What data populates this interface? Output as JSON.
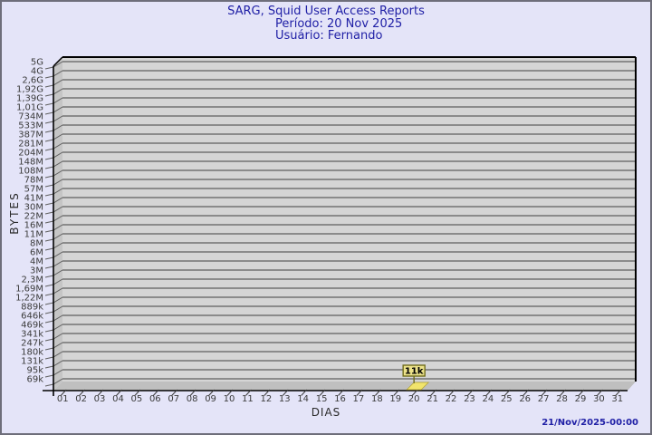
{
  "header": {
    "title": "SARG, Squid User Access Reports",
    "period": "Período: 20 Nov 2025",
    "user": "Usuário: Fernando"
  },
  "footer": {
    "timestamp": "21/Nov/2025-00:00"
  },
  "chart_data": {
    "type": "bar",
    "title": "SARG, Squid User Access Reports",
    "subtitle_period": "Período: 20 Nov 2025",
    "subtitle_user": "Usuário: Fernando",
    "xlabel": "DIAS",
    "ylabel": "BYTES",
    "y_scale": "log",
    "grid": true,
    "legend": null,
    "y_tick_labels_top_to_bottom": [
      "5G",
      "4G",
      "2,6G",
      "1,92G",
      "1,39G",
      "1,01G",
      "734M",
      "533M",
      "387M",
      "281M",
      "204M",
      "148M",
      "108M",
      "78M",
      "57M",
      "41M",
      "30M",
      "22M",
      "16M",
      "11M",
      "8M",
      "6M",
      "4M",
      "3M",
      "2,3M",
      "1,69M",
      "1,22M",
      "889k",
      "646k",
      "469k",
      "341k",
      "247k",
      "180k",
      "131k",
      "95k",
      "69k"
    ],
    "x_tick_labels": [
      "01",
      "02",
      "03",
      "04",
      "05",
      "06",
      "07",
      "08",
      "09",
      "10",
      "11",
      "12",
      "13",
      "14",
      "15",
      "16",
      "17",
      "18",
      "19",
      "20",
      "21",
      "22",
      "23",
      "24",
      "25",
      "26",
      "27",
      "28",
      "29",
      "30",
      "31"
    ],
    "bars": [
      {
        "x": "20",
        "value_label": "11k",
        "value_bytes": 11000
      }
    ]
  },
  "colors": {
    "background": "#e4e4f8",
    "page_border": "#6e6e7a",
    "title_text": "#2020a6",
    "plot_wall": "#d5d5d5",
    "plot_side": "#c5c5c5",
    "plot_floor": "#bfbfbf",
    "gridline": "#5f5f5f",
    "axis": "#000000",
    "tick_text": "#3b3b3b",
    "bar_fill": "#f1e46c",
    "bar_edge": "#b5a63a",
    "flag_fill": "#ece28a",
    "flag_border": "#716d1d",
    "flag_text": "#000000"
  }
}
